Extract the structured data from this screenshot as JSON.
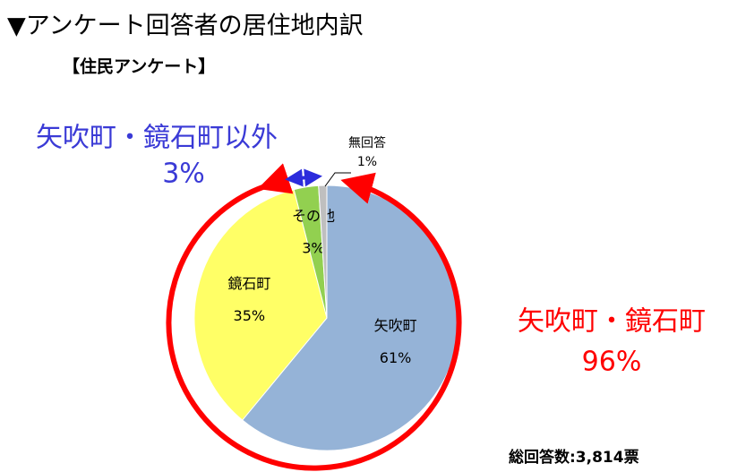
{
  "chart_data": {
    "type": "pie",
    "title": "▼アンケート回答者の居住地内訳",
    "subtitle": "【住民アンケート】",
    "categories": [
      "矢吹町",
      "鏡石町",
      "その他",
      "無回答"
    ],
    "values": [
      61,
      35,
      3,
      1
    ],
    "value_labels": [
      "61%",
      "35%",
      "3%",
      "1%"
    ],
    "colors": [
      "#95b3d7",
      "#ffff66",
      "#92d050",
      "#bfbfbf"
    ],
    "annotations": [
      {
        "text": "矢吹町・鏡石町以外",
        "color": "#3a3ad6"
      },
      {
        "text": "3%",
        "color": "#3a3ad6"
      },
      {
        "text": "矢吹町・鏡石町",
        "color": "#ff0000"
      },
      {
        "text": "96%",
        "color": "#ff0000"
      }
    ],
    "note": "総回答数:3,814票"
  }
}
